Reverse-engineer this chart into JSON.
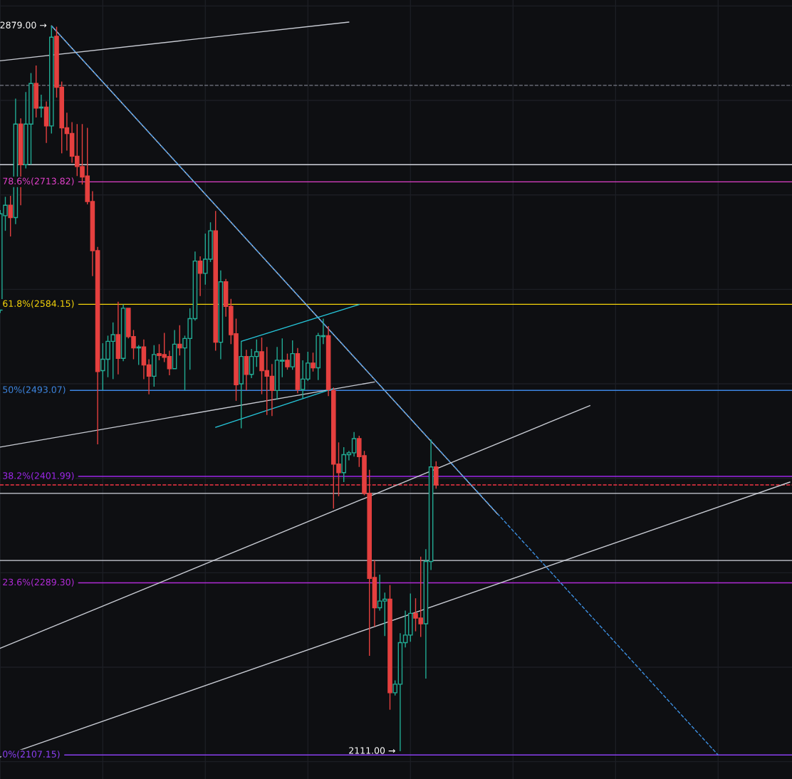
{
  "chart_data": {
    "type": "candlestick",
    "categories": [
      null,
      null,
      null,
      null,
      null,
      null,
      null,
      null,
      null,
      null,
      null,
      null,
      null,
      null,
      null,
      null,
      null,
      null,
      null,
      null,
      null,
      null,
      null,
      null,
      null,
      null,
      null,
      null,
      null,
      null,
      null,
      null,
      null,
      null,
      null,
      null,
      null,
      null,
      null,
      null,
      null,
      null,
      null,
      null,
      null,
      null,
      null,
      null,
      null,
      null,
      null,
      null,
      null,
      null,
      null,
      null,
      null,
      null,
      null,
      null,
      null,
      null,
      null,
      null,
      null,
      null,
      null,
      null,
      null,
      null,
      null,
      null,
      null,
      null,
      null,
      null,
      null,
      null,
      null,
      null,
      null,
      null,
      null,
      null,
      null,
      null,
      null,
      null,
      null,
      null,
      null,
      null,
      null,
      null,
      null,
      null,
      null,
      null,
      null,
      null,
      null,
      null,
      null,
      null,
      null,
      null,
      null,
      null,
      null,
      null,
      null,
      null,
      null,
      null,
      null,
      null,
      null,
      null,
      null,
      null,
      null,
      null,
      null,
      null,
      null,
      null,
      null,
      null,
      null,
      null,
      null,
      null,
      null,
      null,
      null,
      null,
      null,
      null,
      null,
      null,
      null,
      null,
      null,
      null,
      null,
      null,
      null,
      null,
      null,
      null,
      null,
      null,
      null,
      null,
      null
    ],
    "ohlc": [
      [
        2578,
        2684,
        2575,
        2680
      ],
      [
        2678,
        2698,
        2662,
        2689
      ],
      [
        2689,
        2699,
        2656,
        2676
      ],
      [
        2676,
        2802,
        2669,
        2775
      ],
      [
        2775,
        2781,
        2689,
        2732
      ],
      [
        2732,
        2809,
        2728,
        2775
      ],
      [
        2775,
        2829,
        2732,
        2818
      ],
      [
        2818,
        2837,
        2782,
        2792
      ],
      [
        2792,
        2806,
        2782,
        2793
      ],
      [
        2793,
        2799,
        2755,
        2773
      ],
      [
        2773,
        2879,
        2765,
        2867
      ],
      [
        2868,
        2878,
        2803,
        2814
      ],
      [
        2814,
        2820,
        2744,
        2771
      ],
      [
        2771,
        2787,
        2747,
        2765
      ],
      [
        2765,
        2777,
        2734,
        2741
      ],
      [
        2741,
        2775,
        2720,
        2730
      ],
      [
        2730,
        2775,
        2711,
        2719
      ],
      [
        2720,
        2771,
        2690,
        2693
      ],
      [
        2693,
        2704,
        2614,
        2641
      ],
      [
        2641,
        2645,
        2436,
        2513
      ],
      [
        2514,
        2543,
        2493,
        2526
      ],
      [
        2526,
        2551,
        2507,
        2545
      ],
      [
        2545,
        2565,
        2505,
        2552
      ],
      [
        2552,
        2587,
        2510,
        2527
      ],
      [
        2527,
        2584,
        2524,
        2580
      ],
      [
        2580,
        2580,
        2548,
        2550
      ],
      [
        2550,
        2557,
        2526,
        2538
      ],
      [
        2538,
        2541,
        2520,
        2539
      ],
      [
        2539,
        2547,
        2505,
        2520
      ],
      [
        2520,
        2526,
        2489,
        2508
      ],
      [
        2508,
        2541,
        2497,
        2531
      ],
      [
        2532,
        2542,
        2525,
        2530
      ],
      [
        2531,
        2554,
        2523,
        2528
      ],
      [
        2529,
        2535,
        2509,
        2516
      ],
      [
        2516,
        2557,
        2516,
        2542
      ],
      [
        2542,
        2562,
        2530,
        2538
      ],
      [
        2538,
        2551,
        2493,
        2548
      ],
      [
        2548,
        2580,
        2515,
        2569
      ],
      [
        2569,
        2640,
        2567,
        2630
      ],
      [
        2630,
        2635,
        2593,
        2617
      ],
      [
        2617,
        2659,
        2605,
        2632
      ],
      [
        2632,
        2671,
        2629,
        2662
      ],
      [
        2662,
        2683,
        2535,
        2544
      ],
      [
        2544,
        2620,
        2526,
        2608
      ],
      [
        2608,
        2611,
        2571,
        2582
      ],
      [
        2582,
        2590,
        2542,
        2552
      ],
      [
        2553,
        2569,
        2482,
        2499
      ],
      [
        2500,
        2545,
        2453,
        2529
      ],
      [
        2529,
        2536,
        2493,
        2510
      ],
      [
        2510,
        2537,
        2506,
        2529
      ],
      [
        2529,
        2547,
        2518,
        2534
      ],
      [
        2534,
        2549,
        2489,
        2514
      ],
      [
        2514,
        2539,
        2467,
        2508
      ],
      [
        2508,
        2521,
        2466,
        2493
      ],
      [
        2493,
        2539,
        2483,
        2525
      ],
      [
        2524,
        2548,
        2507,
        2525
      ],
      [
        2525,
        2532,
        2515,
        2518
      ],
      [
        2518,
        2546,
        2515,
        2532
      ],
      [
        2532,
        2538,
        2490,
        2494
      ],
      [
        2494,
        2525,
        2485,
        2505
      ],
      [
        2505,
        2534,
        2503,
        2522
      ],
      [
        2522,
        2533,
        2513,
        2517
      ],
      [
        2517,
        2554,
        2504,
        2551
      ],
      [
        2550,
        2569,
        2542,
        2551
      ],
      [
        2551,
        2561,
        2487,
        2494
      ],
      [
        2493,
        2496,
        2368,
        2415
      ],
      [
        2415,
        2438,
        2381,
        2406
      ],
      [
        2406,
        2433,
        2396,
        2425
      ],
      [
        2425,
        2429,
        2419,
        2427
      ],
      [
        2427,
        2449,
        2423,
        2442
      ],
      [
        2442,
        2445,
        2412,
        2423
      ],
      [
        2424,
        2429,
        2382,
        2384
      ],
      [
        2384,
        2409,
        2212,
        2294
      ],
      [
        2295,
        2313,
        2243,
        2263
      ],
      [
        2263,
        2298,
        2260,
        2270
      ],
      [
        2270,
        2279,
        2233,
        2272
      ],
      [
        2272,
        2287,
        2155,
        2173
      ],
      [
        2173,
        2186,
        2170,
        2182
      ],
      [
        2182,
        2236,
        2111,
        2226
      ],
      [
        2226,
        2260,
        2221,
        2234
      ],
      [
        2234,
        2278,
        2227,
        2257
      ],
      [
        2257,
        2273,
        2238,
        2252
      ],
      [
        2252,
        2317,
        2232,
        2246
      ],
      [
        2246,
        2325,
        2188,
        2312
      ],
      [
        2312,
        2441,
        2303,
        2412
      ],
      [
        2412,
        2418,
        2389,
        2393
      ],
      null,
      null,
      null,
      null,
      null,
      null,
      null,
      null,
      null,
      null,
      null,
      null,
      null,
      null,
      null,
      null,
      null,
      null,
      null,
      null,
      null,
      null,
      null,
      null,
      null,
      null,
      null,
      null,
      null,
      null,
      null,
      null,
      null,
      null,
      null,
      null,
      null,
      null,
      null,
      null,
      null,
      null,
      null,
      null,
      null,
      null,
      null,
      null,
      null,
      null,
      null,
      null,
      null,
      null,
      null,
      null,
      null,
      null,
      null,
      null,
      null,
      null,
      null,
      null,
      null,
      null,
      null,
      null,
      null
    ],
    "colors": [
      "#22ab94",
      "#22ab94",
      "#e5403f",
      "#22ab94",
      "#e5403f",
      "#22ab94",
      "#22ab94",
      "#e5403f",
      "#22ab94",
      "#e5403f",
      "#22ab94",
      "#e5403f",
      "#e5403f",
      "#e5403f",
      "#e5403f",
      "#e5403f",
      "#e5403f",
      "#e5403f",
      "#e5403f",
      "#e5403f",
      "#22ab94",
      "#22ab94",
      "#22ab94",
      "#e5403f",
      "#22ab94",
      "#e5403f",
      "#e5403f",
      "#22ab94",
      "#e5403f",
      "#e5403f",
      "#22ab94",
      "#e5403f",
      "#e5403f",
      "#e5403f",
      "#22ab94",
      "#e5403f",
      "#22ab94",
      "#22ab94",
      "#22ab94",
      "#e5403f",
      "#22ab94",
      "#22ab94",
      "#e5403f",
      "#22ab94",
      "#e5403f",
      "#e5403f",
      "#e5403f",
      "#22ab94",
      "#e5403f",
      "#22ab94",
      "#22ab94",
      "#e5403f",
      "#e5403f",
      "#e5403f",
      "#22ab94",
      "#22ab94",
      "#e5403f",
      "#22ab94",
      "#e5403f",
      "#22ab94",
      "#22ab94",
      "#e5403f",
      "#22ab94",
      "#22ab94",
      "#e5403f",
      "#e5403f",
      "#e5403f",
      "#22ab94",
      "#22ab94",
      "#22ab94",
      "#e5403f",
      "#e5403f",
      "#e5403f",
      "#e5403f",
      "#22ab94",
      "#22ab94",
      "#e5403f",
      "#22ab94",
      "#22ab94",
      "#22ab94",
      "#22ab94",
      "#e5403f",
      "#e5403f",
      "#22ab94",
      "#22ab94",
      "#e5403f",
      null,
      null,
      null,
      null,
      null,
      null,
      null,
      null,
      null,
      null,
      null,
      null,
      null,
      null,
      null,
      null,
      null,
      null,
      null,
      null,
      null,
      null,
      null,
      null,
      null,
      null,
      null,
      null,
      null,
      null,
      null,
      null,
      null,
      null,
      null,
      null,
      null,
      null,
      null,
      null,
      null,
      null,
      null,
      null,
      null,
      null,
      null,
      null,
      null,
      null,
      null,
      null,
      null,
      null,
      null,
      null,
      null,
      null,
      null,
      null,
      null,
      null,
      null,
      null,
      null,
      null,
      null,
      null,
      null
    ],
    "series": [
      {
        "type": "line",
        "color": "#c8cbd3",
        "values": [
          2842,
          null,
          null,
          null,
          null,
          null,
          null,
          null,
          null,
          null,
          null,
          null,
          null,
          null,
          null,
          null,
          null,
          null,
          null,
          null,
          null,
          null,
          null,
          null,
          null,
          null,
          null,
          null,
          null,
          null,
          null,
          null,
          null,
          null,
          null,
          null,
          null,
          null,
          null,
          null,
          null,
          null,
          null,
          null,
          null,
          null,
          null,
          null,
          null,
          null,
          null,
          null,
          null,
          null,
          null,
          null,
          null,
          null,
          null,
          null,
          null,
          null,
          null,
          null,
          null,
          null,
          null,
          null,
          2883,
          null,
          null,
          null,
          null,
          null,
          null,
          null,
          null,
          null,
          null,
          null,
          null,
          null,
          null,
          null,
          null,
          null,
          null,
          null,
          null,
          null,
          null,
          null,
          null,
          null,
          null,
          null,
          null,
          null,
          null,
          null,
          null,
          null,
          null,
          null,
          null,
          null,
          null,
          null,
          null,
          null,
          null,
          null,
          null,
          null,
          null,
          null,
          null,
          null,
          null,
          null,
          null,
          null,
          null,
          null,
          null,
          null,
          null,
          null,
          null,
          null,
          null,
          null,
          null,
          null,
          null,
          null,
          null,
          null,
          null,
          null,
          null,
          null,
          null,
          null,
          null,
          null,
          null,
          null,
          null,
          null,
          null,
          null,
          null,
          null,
          null
        ]
      },
      {
        "type": "line",
        "color": "#c8cbd3",
        "values": [
          null,
          null,
          null,
          null,
          null,
          null,
          null,
          null,
          null,
          null,
          2879,
          null,
          null,
          null,
          null,
          null,
          null,
          null,
          null,
          null,
          null,
          null,
          null,
          null,
          null,
          null,
          null,
          null,
          null,
          null,
          null,
          null,
          null,
          null,
          null,
          null,
          null,
          null,
          null,
          null,
          null,
          null,
          null,
          null,
          null,
          null,
          null,
          null,
          null,
          null,
          null,
          null,
          null,
          null,
          null,
          null,
          null,
          null,
          null,
          null,
          null,
          null,
          null,
          null,
          null,
          null,
          null,
          null,
          null,
          null,
          null,
          null,
          null,
          null,
          null,
          null,
          null,
          null,
          null,
          null,
          null,
          null,
          null,
          null,
          null,
          null,
          null,
          null,
          null,
          null,
          null,
          null,
          null,
          null,
          null,
          null,
          null,
          2362,
          null,
          null,
          null,
          null,
          null,
          null,
          null,
          null,
          null,
          null,
          null,
          null,
          null,
          null,
          null,
          null,
          null,
          null,
          null,
          null,
          null,
          null,
          null,
          null,
          null,
          null,
          null,
          null,
          null,
          null,
          null,
          null,
          null,
          null,
          null,
          null,
          null,
          null,
          null,
          null,
          null,
          null,
          null,
          null,
          null,
          null,
          null,
          null,
          null,
          null,
          null,
          null,
          null,
          null,
          null,
          null,
          null
        ]
      },
      {
        "type": "line",
        "color": "#3d8fe0",
        "line_style": "dashed",
        "values": [
          null,
          null,
          null,
          null,
          null,
          null,
          null,
          null,
          null,
          null,
          2879,
          null,
          null,
          null,
          null,
          null,
          null,
          null,
          null,
          null,
          null,
          null,
          null,
          null,
          null,
          null,
          null,
          null,
          null,
          null,
          null,
          null,
          null,
          null,
          null,
          null,
          null,
          null,
          null,
          null,
          null,
          null,
          null,
          null,
          null,
          null,
          null,
          null,
          null,
          null,
          null,
          null,
          null,
          null,
          null,
          null,
          null,
          null,
          null,
          null,
          null,
          null,
          null,
          null,
          null,
          null,
          null,
          null,
          null,
          null,
          null,
          null,
          null,
          null,
          null,
          null,
          null,
          null,
          null,
          null,
          null,
          null,
          null,
          null,
          null,
          null,
          null,
          null,
          null,
          null,
          null,
          null,
          null,
          null,
          null,
          null,
          null,
          null,
          null,
          null,
          null,
          null,
          null,
          null,
          null,
          null,
          null,
          null,
          null,
          null,
          null,
          null,
          null,
          null,
          null,
          null,
          null,
          null,
          null,
          null,
          null,
          null,
          null,
          null,
          null,
          null,
          null,
          null,
          null,
          null,
          null,
          null,
          null,
          null,
          null,
          null,
          null,
          null,
          null,
          null,
          2107,
          null,
          null,
          null,
          null,
          null,
          null,
          null,
          null,
          null,
          null,
          null,
          null,
          null,
          null
        ]
      },
      {
        "type": "line",
        "color": "#c8cbd3",
        "values": [
          2433,
          null,
          null,
          null,
          null,
          null,
          null,
          null,
          null,
          null,
          null,
          null,
          null,
          null,
          null,
          null,
          null,
          null,
          null,
          null,
          null,
          null,
          null,
          null,
          null,
          null,
          null,
          null,
          null,
          null,
          null,
          null,
          null,
          null,
          null,
          null,
          null,
          null,
          null,
          null,
          null,
          null,
          null,
          null,
          null,
          null,
          null,
          null,
          null,
          null,
          null,
          null,
          null,
          null,
          null,
          null,
          null,
          null,
          null,
          null,
          null,
          null,
          null,
          null,
          null,
          null,
          null,
          null,
          null,
          null,
          null,
          null,
          null,
          2502,
          null,
          null,
          null,
          null,
          null,
          null,
          null,
          null,
          null,
          null,
          null,
          null,
          null,
          null,
          null,
          null,
          null,
          null,
          null,
          null,
          null,
          null,
          null,
          null,
          null,
          null,
          null,
          null,
          null,
          null,
          null,
          null,
          null,
          null,
          null,
          null,
          null,
          null,
          null,
          null,
          null,
          null,
          null,
          null,
          null,
          null,
          null,
          null,
          null,
          null,
          null,
          null,
          null,
          null,
          null,
          null,
          null,
          null,
          null,
          null,
          null,
          null,
          null,
          null,
          null,
          null,
          null,
          null,
          null,
          null,
          null,
          null,
          null,
          null,
          null,
          null,
          null,
          null,
          null,
          null,
          null
        ]
      },
      {
        "type": "line",
        "color": "#c8cbd3",
        "values": [
          2220,
          null,
          null,
          null,
          null,
          null,
          null,
          null,
          null,
          null,
          null,
          null,
          null,
          null,
          null,
          null,
          null,
          null,
          null,
          null,
          null,
          null,
          null,
          null,
          null,
          null,
          null,
          null,
          null,
          null,
          null,
          null,
          null,
          null,
          null,
          null,
          null,
          null,
          null,
          null,
          null,
          null,
          null,
          null,
          null,
          null,
          null,
          null,
          null,
          null,
          null,
          null,
          null,
          null,
          null,
          null,
          null,
          null,
          null,
          null,
          null,
          null,
          null,
          null,
          null,
          null,
          null,
          null,
          null,
          null,
          null,
          null,
          null,
          null,
          null,
          null,
          null,
          null,
          null,
          null,
          null,
          null,
          null,
          null,
          null,
          null,
          null,
          null,
          null,
          null,
          null,
          null,
          null,
          null,
          null,
          null,
          null,
          null,
          null,
          null,
          null,
          null,
          null,
          null,
          null,
          null,
          null,
          null,
          null,
          null,
          null,
          null,
          null,
          null,
          null,
          2477,
          null,
          null,
          null,
          null,
          null,
          null,
          null,
          null,
          null,
          null,
          null,
          null,
          null,
          null,
          null,
          null,
          null,
          null,
          null,
          null,
          null,
          null,
          null,
          null,
          null,
          null,
          null,
          null,
          null,
          null,
          null,
          null,
          null,
          null,
          null,
          null,
          null,
          null,
          null
        ]
      },
      {
        "type": "line",
        "color": "#c8cbd3",
        "values": [
          2105,
          null,
          null,
          null,
          null,
          null,
          null,
          null,
          null,
          null,
          null,
          null,
          null,
          null,
          null,
          null,
          null,
          null,
          null,
          null,
          null,
          null,
          null,
          null,
          null,
          null,
          null,
          null,
          null,
          null,
          null,
          null,
          null,
          null,
          null,
          null,
          null,
          null,
          null,
          null,
          null,
          null,
          null,
          null,
          null,
          null,
          null,
          null,
          null,
          null,
          null,
          null,
          null,
          null,
          null,
          null,
          null,
          null,
          null,
          null,
          null,
          null,
          null,
          null,
          null,
          null,
          null,
          null,
          null,
          null,
          null,
          null,
          null,
          null,
          null,
          null,
          null,
          null,
          null,
          null,
          null,
          null,
          null,
          null,
          null,
          null,
          null,
          null,
          null,
          null,
          null,
          null,
          null,
          null,
          null,
          null,
          null,
          null,
          null,
          null,
          null,
          null,
          null,
          null,
          null,
          null,
          null,
          null,
          null,
          null,
          null,
          null,
          null,
          null,
          null,
          null,
          null,
          null,
          null,
          null,
          null,
          null,
          null,
          null,
          null,
          null,
          null,
          null,
          null,
          null,
          null,
          null,
          null,
          null,
          null,
          null,
          null,
          null,
          null,
          null,
          null,
          null,
          null,
          null,
          null,
          null,
          null,
          null,
          null,
          null,
          null,
          null,
          null,
          null,
          2396
        ]
      },
      {
        "type": "line",
        "color": "#26c6da",
        "values": [
          null,
          null,
          null,
          null,
          null,
          null,
          null,
          null,
          null,
          null,
          null,
          null,
          null,
          null,
          null,
          null,
          null,
          null,
          null,
          null,
          null,
          null,
          null,
          null,
          null,
          null,
          null,
          null,
          null,
          null,
          null,
          null,
          null,
          null,
          null,
          null,
          null,
          null,
          null,
          null,
          null,
          null,
          null,
          null,
          null,
          null,
          null,
          2545,
          null,
          null,
          null,
          null,
          null,
          null,
          null,
          null,
          null,
          null,
          null,
          null,
          null,
          null,
          null,
          null,
          null,
          null,
          null,
          null,
          null,
          null,
          2584,
          null,
          null,
          null,
          null,
          null,
          null,
          null,
          null,
          null,
          null,
          null,
          null,
          null,
          null,
          null,
          null,
          null,
          null,
          null,
          null,
          null,
          null,
          null,
          null,
          null,
          null,
          null,
          null,
          null,
          null,
          null,
          null,
          null,
          null,
          null,
          null,
          null,
          null,
          null,
          null,
          null,
          null,
          null,
          null,
          null,
          null,
          null,
          null,
          null,
          null,
          null,
          null,
          null,
          null,
          null,
          null,
          null,
          null,
          null,
          null,
          null,
          null,
          null,
          null,
          null,
          null,
          null,
          null,
          null,
          null,
          null,
          null,
          null,
          null,
          null,
          null,
          null,
          null,
          null,
          null,
          null,
          null,
          null,
          null
        ]
      },
      {
        "type": "line",
        "color": "#26c6da",
        "values": [
          null,
          null,
          null,
          null,
          null,
          null,
          null,
          null,
          null,
          null,
          null,
          null,
          null,
          null,
          null,
          null,
          null,
          null,
          null,
          null,
          null,
          null,
          null,
          null,
          null,
          null,
          null,
          null,
          null,
          null,
          null,
          null,
          null,
          null,
          null,
          null,
          null,
          null,
          null,
          null,
          null,
          null,
          2454,
          null,
          null,
          null,
          null,
          null,
          null,
          null,
          null,
          null,
          null,
          null,
          null,
          null,
          null,
          null,
          null,
          null,
          null,
          null,
          null,
          null,
          null,
          2495,
          null,
          null,
          null,
          null,
          null,
          null,
          null,
          null,
          null,
          null,
          null,
          null,
          null,
          null,
          null,
          null,
          null,
          null,
          null,
          null,
          null,
          null,
          null,
          null,
          null,
          null,
          null,
          null,
          null,
          null,
          null,
          null,
          null,
          null,
          null,
          null,
          null,
          null,
          null,
          null,
          null,
          null,
          null,
          null,
          null,
          null,
          null,
          null,
          null,
          null,
          null,
          null,
          null,
          null,
          null,
          null,
          null,
          null,
          null,
          null,
          null,
          null,
          null,
          null,
          null,
          null,
          null,
          null,
          null,
          null,
          null,
          null,
          null,
          null,
          null,
          null,
          null,
          null,
          null,
          null,
          null,
          null,
          null,
          null,
          null,
          null,
          null,
          null,
          null
        ]
      }
    ],
    "ref_lines": [
      {
        "axis": "y",
        "value": 2713.82,
        "label": "78.6%(2713.82)",
        "color": "#e040c8"
      },
      {
        "axis": "y",
        "value": 2584.15,
        "label": "61.8%(2584.15)",
        "color": "#f5d40a"
      },
      {
        "axis": "y",
        "value": 2493.07,
        "label": "50%(2493.07)",
        "color": "#3d85e0"
      },
      {
        "axis": "y",
        "value": 2401.99,
        "label": "38.2%(2401.99)",
        "color": "#9c27e8"
      },
      {
        "axis": "y",
        "value": 2289.3,
        "label": "23.6%(2289.30)",
        "color": "#b02bd6"
      },
      {
        "axis": "y",
        "value": 2107.15,
        "label": "0%(2107.15)",
        "color": "#8a3ff0"
      },
      {
        "axis": "y",
        "value": 2732,
        "color": "#d1d4dc"
      },
      {
        "axis": "y",
        "value": 2384,
        "color": "#d1d4dc"
      },
      {
        "axis": "y",
        "value": 2313,
        "color": "#d1d4dc"
      },
      {
        "axis": "y",
        "value": 2816,
        "color": "#787b86",
        "line_style": "dashed"
      },
      {
        "axis": "y",
        "value": 2393,
        "color": "#f23645",
        "line_style": "dashed"
      }
    ],
    "annotations": [
      "2879.00 →",
      "2111.00 →"
    ],
    "grid": true,
    "tick_labels": false
  }
}
